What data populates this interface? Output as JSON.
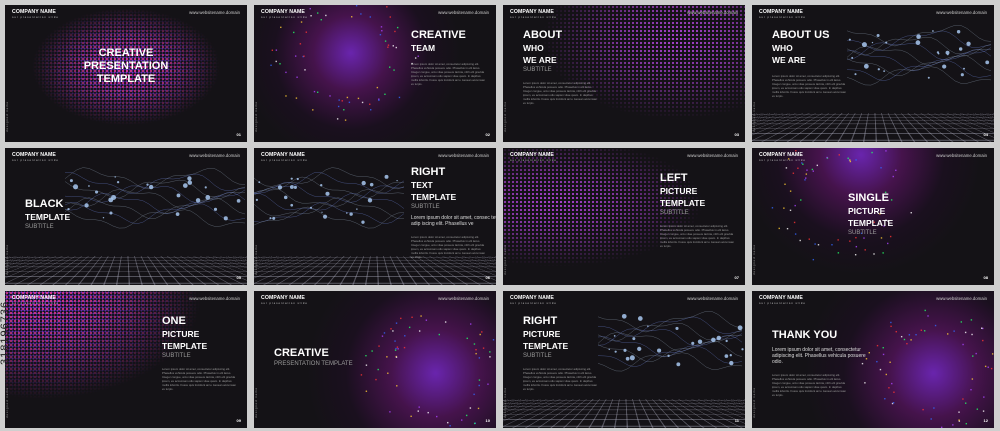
{
  "header": {
    "company": "COMPANY NAME",
    "tagline": "our presentation slide",
    "website": "www.websitename.domain",
    "vertical": "designed name"
  },
  "watermark_id": "318196736",
  "lorem_body": "Lorem ipsum dolor sit amet, consectetur adipiscing elit. Phasellus vehicula posuere odio. Phasellus in elit lacus. Integer congue, arcu vitae posuere lacinia, nibh elit gravida ipsum, eu accumsan odio sapien vitae quam. In dapibus mollis lobortis. Fusce quis tincidunt arcu. Aenean accumsan ex turpis.",
  "slides": [
    {
      "number": "01",
      "align": "center",
      "deco": "dots-pink-center",
      "title": [
        "CREATIVE",
        "PRESENTATION",
        "TEMPLATE"
      ],
      "subtitle": "",
      "big": "",
      "body": false
    },
    {
      "number": "02",
      "align": "right",
      "deco": "glow-confetti",
      "title": [
        "CREATIVE",
        "TEAM"
      ],
      "subtitle": "",
      "big": "",
      "body": true
    },
    {
      "number": "03",
      "align": "left",
      "deco": "dots-right",
      "title": [
        "ABOUT",
        "WHO",
        "WE ARE"
      ],
      "subtitle": "SUBTITLE",
      "big": "",
      "body": true
    },
    {
      "number": "04",
      "align": "left",
      "deco": "waves-floor",
      "title": [
        "ABOUT US",
        "WHO",
        "WE ARE"
      ],
      "subtitle": "",
      "big": "",
      "body": true
    },
    {
      "number": "05",
      "align": "left-lower",
      "deco": "waves-floor",
      "title": [
        "BLACK",
        "TEMPLATE"
      ],
      "subtitle": "SUBTITLE",
      "big": "",
      "body": false
    },
    {
      "number": "06",
      "align": "right",
      "deco": "waves-floor",
      "title": [
        "RIGHT",
        "TEXT",
        "TEMPLATE"
      ],
      "subtitle": "SUBTITLE",
      "big": "Lorem ipsum dolor sit amet, consec tetur adip iscing elit. Phasellus ve",
      "body": true
    },
    {
      "number": "07",
      "align": "right",
      "deco": "dots-left",
      "title": [
        "LEFT",
        "PICTURE",
        "TEMPLATE"
      ],
      "subtitle": "SUBTITLE",
      "big": "",
      "body": true
    },
    {
      "number": "08",
      "align": "mid",
      "deco": "glow-confetti",
      "title": [
        "SINGLE",
        "PICTURE",
        "TEMPLATE"
      ],
      "subtitle": "SUBTITLE",
      "big": "",
      "body": false
    },
    {
      "number": "09",
      "align": "right",
      "deco": "dots-topleft",
      "title": [
        "ONE",
        "PICTURE",
        "TEMPLATE"
      ],
      "subtitle": "SUBTITLE",
      "big": "",
      "body": true
    },
    {
      "number": "10",
      "align": "left-bottom",
      "deco": "glow-right",
      "title": [
        "CREATIVE"
      ],
      "subtitle": "PRESENTATION TEMPLATE",
      "big": "",
      "body": false
    },
    {
      "number": "11",
      "align": "left",
      "deco": "waves-floor",
      "title": [
        "RIGHT",
        "PICTURE",
        "TEMPLATE"
      ],
      "subtitle": "SUBTITLE",
      "big": "",
      "body": true
    },
    {
      "number": "12",
      "align": "left-lower",
      "deco": "glow-right",
      "title": [
        "THANK YOU"
      ],
      "subtitle": "",
      "big": "Lorem ipsum dolor sit amet, consectetur adipiscing elit. Phasellus vehicula posuere odio.",
      "body": true
    }
  ],
  "colors": {
    "background": "#141216",
    "purple": "#7b3ae0",
    "magenta": "#e0399a",
    "frame": "#cfcfcf"
  }
}
